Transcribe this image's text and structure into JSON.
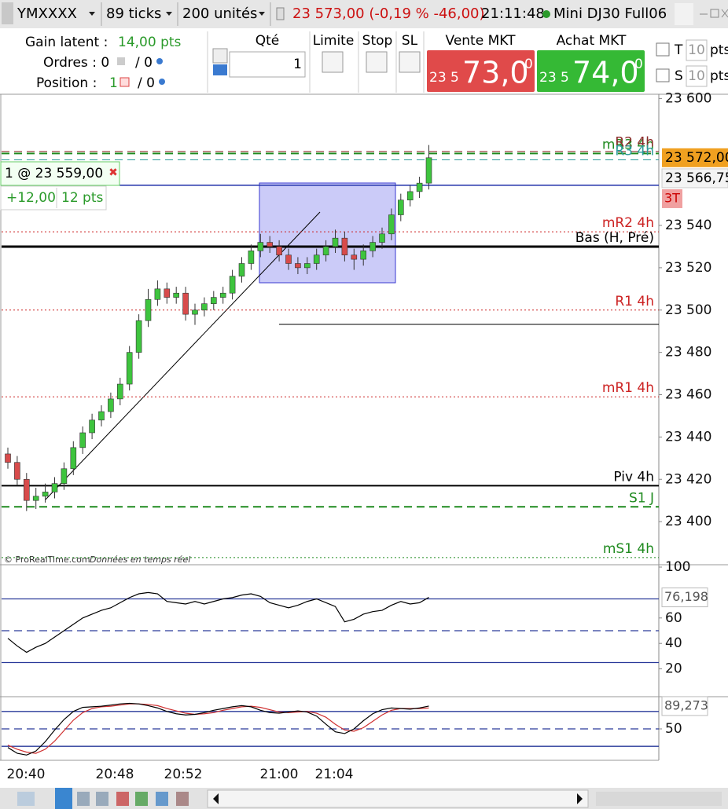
{
  "toolbar": {
    "symbol": "YMXXXX",
    "period": "89 ticks",
    "units": "200 unités",
    "quote": "23 573,00 (-0,19 % -46,00)",
    "time": "21:11:48",
    "instrument": "Mini DJ30 Full06"
  },
  "order_panel": {
    "gain_label": "Gain latent :",
    "gain_value": "14,00 pts",
    "orders_label": "Ordres : 0",
    "orders_sep": "/ 0",
    "position_label": "Position :",
    "position_value": "1",
    "position_sep": "/ 0",
    "qty_label": "Qté",
    "qty_value": "1",
    "limit": "Limite",
    "stop": "Stop",
    "sl": "SL",
    "sell_label": "Vente MKT",
    "sell_prefix": "23 5",
    "sell_main": "73,0",
    "sell_sup": "0",
    "buy_label": "Achat MKT",
    "buy_prefix": "23 5",
    "buy_main": "74,0",
    "buy_sup": "0",
    "t_label": "T",
    "t_value": "10",
    "t_unit": "pts",
    "s_label": "S",
    "s_value": "10",
    "s_unit": "pts"
  },
  "position_box": {
    "entry": "1 @ 23 559,00",
    "value": 23559,
    "pnl": "+12,00",
    "pts": "12 pts"
  },
  "copyright": "© ProRealTime.com",
  "realtime": "Données en temps réel",
  "time_labels": [
    "20:40",
    "20:48",
    "20:52",
    "21:00",
    "21:04"
  ],
  "chart_data": [
    {
      "type": "candlestick",
      "open": [
        23432,
        23428,
        23420,
        23410,
        23412,
        23414,
        23418,
        23425,
        23435,
        23442,
        23448,
        23452,
        23458,
        23465,
        23480,
        23495,
        23505,
        23510,
        23506,
        23508,
        23498,
        23500,
        23503,
        23506,
        23508,
        23516,
        23522,
        23528,
        23532,
        23530,
        23526,
        23522,
        23520,
        23522,
        23526,
        23530,
        23534,
        23526,
        23524,
        23528,
        23532,
        23536,
        23545,
        23552,
        23556,
        23560
      ],
      "high": [
        23435,
        23431,
        23423,
        23416,
        23418,
        23421,
        23428,
        23438,
        23445,
        23451,
        23455,
        23461,
        23468,
        23483,
        23498,
        23510,
        23514,
        23513,
        23511,
        23511,
        23503,
        23506,
        23509,
        23511,
        23519,
        23525,
        23531,
        23536,
        23535,
        23533,
        23529,
        23525,
        23525,
        23529,
        23533,
        23538,
        23537,
        23529,
        23531,
        23535,
        23539,
        23548,
        23555,
        23559,
        23563,
        23578
      ],
      "low": [
        23425,
        23417,
        23405,
        23406,
        23409,
        23411,
        23415,
        23422,
        23432,
        23439,
        23445,
        23449,
        23455,
        23462,
        23477,
        23492,
        23502,
        23503,
        23503,
        23495,
        23493,
        23497,
        23500,
        23503,
        23505,
        23513,
        23519,
        23525,
        23527,
        23523,
        23519,
        23517,
        23517,
        23519,
        23523,
        23527,
        23523,
        23519,
        23521,
        23525,
        23529,
        23533,
        23542,
        23549,
        23553,
        23557
      ],
      "close": [
        23428,
        23420,
        23410,
        23412,
        23414,
        23418,
        23425,
        23435,
        23442,
        23448,
        23452,
        23458,
        23465,
        23480,
        23495,
        23505,
        23510,
        23506,
        23508,
        23498,
        23500,
        23503,
        23506,
        23508,
        23516,
        23522,
        23528,
        23532,
        23530,
        23526,
        23522,
        23520,
        23522,
        23526,
        23530,
        23534,
        23526,
        23524,
        23528,
        23532,
        23536,
        23545,
        23552,
        23556,
        23560,
        23572
      ],
      "up_color": "#3ec43e",
      "down_color": "#d84b4b",
      "ylim": [
        23380,
        23602
      ],
      "yticks": [
        {
          "value": 23600,
          "label": "23 600"
        },
        {
          "value": 23540,
          "label": "23 540"
        },
        {
          "value": 23520,
          "label": "23 520"
        },
        {
          "value": 23500,
          "label": "23 500"
        },
        {
          "value": 23480,
          "label": "23 480"
        },
        {
          "value": 23460,
          "label": "23 460"
        },
        {
          "value": 23440,
          "label": "23 440"
        },
        {
          "value": 23420,
          "label": "23 420"
        },
        {
          "value": 23400,
          "label": "23 400"
        }
      ],
      "levels": [
        {
          "label": "mR3 4h",
          "value": 23574,
          "color": "#1f8a1f",
          "style": "dashed",
          "width": 2
        },
        {
          "label": "R2 4h",
          "value": 23575,
          "color": "#8b2a2a",
          "style": "dashed",
          "width": 1
        },
        {
          "label": "R3 4h",
          "value": 23571,
          "color": "#2a9a9a",
          "style": "dashed",
          "width": 1
        },
        {
          "label": "mR2 4h",
          "value": 23537,
          "color": "#cc2222",
          "style": "dotted",
          "width": 1
        },
        {
          "label": "Bas (H, Pré)",
          "value": 23530,
          "color": "#000000",
          "style": "solid",
          "width": 3
        },
        {
          "label": "R1 4h",
          "value": 23500,
          "color": "#cc2222",
          "style": "dotted",
          "width": 1
        },
        {
          "label": "mR1 4h",
          "value": 23459,
          "color": "#cc2222",
          "style": "dotted",
          "width": 1
        },
        {
          "label": "Piv 4h",
          "value": 23417,
          "color": "#000000",
          "style": "solid",
          "width": 2
        },
        {
          "label": "S1 J",
          "value": 23407,
          "color": "#1f8a1f",
          "style": "dashed",
          "width": 2
        },
        {
          "label": "mS1 4h",
          "value": 23383,
          "color": "#1f8a1f",
          "style": "dotted",
          "width": 1
        }
      ],
      "last_price": {
        "value": 23572,
        "label": "23 572,00",
        "color": "#f0a020"
      },
      "other_price": {
        "value": 23566.75,
        "label": "23 566,75"
      },
      "badge": "3T"
    },
    {
      "type": "line",
      "values": [
        44,
        38,
        33,
        37,
        40,
        45,
        50,
        55,
        60,
        63,
        66,
        68,
        72,
        76,
        79,
        80,
        79,
        73,
        72,
        71,
        73,
        71,
        73,
        75,
        76,
        78,
        79,
        77,
        72,
        70,
        68,
        70,
        73,
        75,
        72,
        69,
        57,
        59,
        63,
        65,
        66,
        70,
        73,
        71,
        72,
        76.198
      ],
      "color": "#000000",
      "ylim": [
        0,
        100
      ],
      "yticks": [
        100,
        60,
        40,
        20
      ],
      "levels": [
        {
          "value": 75,
          "style": "solid"
        },
        {
          "value": 50,
          "style": "dashed"
        },
        {
          "value": 25,
          "style": "solid"
        }
      ],
      "level_color": "#2a3a9a",
      "last": {
        "value": 76.198,
        "label": "76,198"
      }
    },
    {
      "type": "line",
      "series": [
        {
          "color": "#000000",
          "values": [
            18,
            8,
            5,
            12,
            28,
            48,
            66,
            80,
            87,
            88,
            89,
            91,
            93,
            94,
            93,
            90,
            86,
            80,
            76,
            74,
            75,
            78,
            82,
            85,
            88,
            90,
            88,
            82,
            78,
            77,
            79,
            81,
            79,
            72,
            58,
            45,
            42,
            50,
            64,
            76,
            83,
            86,
            85,
            84,
            86,
            89.273
          ]
        },
        {
          "color": "#d03030",
          "values": [
            22,
            15,
            10,
            8,
            15,
            29,
            47,
            65,
            78,
            85,
            88,
            89,
            91,
            93,
            93,
            92,
            90,
            85,
            81,
            77,
            75,
            76,
            78,
            82,
            85,
            88,
            89,
            87,
            83,
            79,
            78,
            79,
            80,
            77,
            70,
            58,
            48,
            46,
            52,
            63,
            74,
            82,
            85,
            85,
            85,
            86
          ]
        }
      ],
      "ylim": [
        0,
        100
      ],
      "yticks": [
        50
      ],
      "levels": [
        {
          "value": 80,
          "style": "solid"
        },
        {
          "value": 50,
          "style": "dashed"
        },
        {
          "value": 20,
          "style": "solid"
        }
      ],
      "level_color": "#2a3a9a",
      "last": {
        "value": 89.273,
        "label": "89,273"
      }
    }
  ]
}
